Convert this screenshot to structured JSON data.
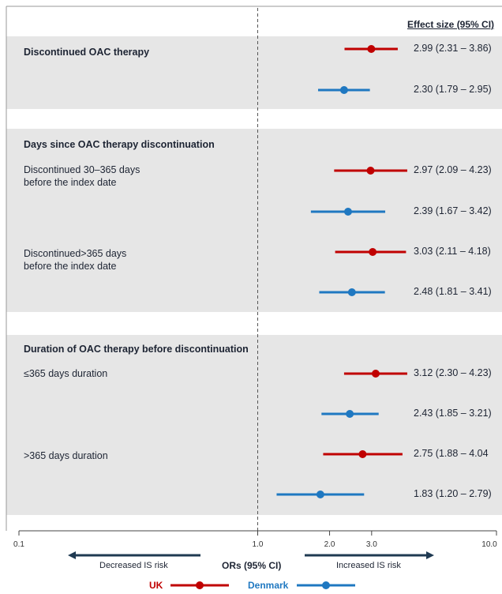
{
  "header": {
    "effect_title": "Effect size (95% CI)"
  },
  "sections": [
    {
      "title": "Discontinued OAC therapy",
      "rows": []
    },
    {
      "title": "Days since OAC therapy discontinuation",
      "rows": [
        "Discontinued 30–365 days\nbefore the index date",
        "Discontinued>365 days\nbefore the index date"
      ]
    },
    {
      "title": "Duration of OAC therapy before discontinuation",
      "rows": [
        "≤365 days duration",
        ">365 days duration"
      ]
    }
  ],
  "chart_data": {
    "type": "forest",
    "x_scale": "log",
    "xlim": [
      0.1,
      10.0
    ],
    "reference_line": 1.0,
    "xlabel": "ORs (95% CI)",
    "ticks": [
      {
        "value": 0.1,
        "label": "0.1"
      },
      {
        "value": 1.0,
        "label": "1.0"
      },
      {
        "value": 2.0,
        "label": "2.0"
      },
      {
        "value": 3.0,
        "label": "3.0"
      },
      {
        "value": 10.0,
        "label": "10.0"
      }
    ],
    "series": [
      {
        "name": "UK",
        "color": "#c00000"
      },
      {
        "name": "Denmark",
        "color": "#1f78c1"
      }
    ],
    "estimates": [
      {
        "series": "UK",
        "or": 2.99,
        "lo": 2.31,
        "hi": 3.86,
        "text": "2.99 (2.31 – 3.86)"
      },
      {
        "series": "Denmark",
        "or": 2.3,
        "lo": 1.79,
        "hi": 2.95,
        "text": "2.30 (1.79 – 2.95)"
      },
      {
        "series": "UK",
        "or": 2.97,
        "lo": 2.09,
        "hi": 4.23,
        "text": "2.97 (2.09 – 4.23)"
      },
      {
        "series": "Denmark",
        "or": 2.39,
        "lo": 1.67,
        "hi": 3.42,
        "text": "2.39 (1.67 – 3.42)"
      },
      {
        "series": "UK",
        "or": 3.03,
        "lo": 2.11,
        "hi": 4.18,
        "text": "3.03 (2.11 – 4.18)"
      },
      {
        "series": "Denmark",
        "or": 2.48,
        "lo": 1.81,
        "hi": 3.41,
        "text": "2.48 (1.81 – 3.41)"
      },
      {
        "series": "UK",
        "or": 3.12,
        "lo": 2.3,
        "hi": 4.23,
        "text": "3.12 (2.30 – 4.23)"
      },
      {
        "series": "Denmark",
        "or": 2.43,
        "lo": 1.85,
        "hi": 3.21,
        "text": "2.43 (1.85 – 3.21)"
      },
      {
        "series": "UK",
        "or": 2.75,
        "lo": 1.88,
        "hi": 4.04,
        "text": "2.75 (1.88 – 4.04"
      },
      {
        "series": "Denmark",
        "or": 1.83,
        "lo": 1.2,
        "hi": 2.79,
        "text": "1.83 (1.20 – 2.79)"
      }
    ],
    "direction_labels": {
      "left": "Decreased IS risk",
      "right": "Increased IS risk"
    },
    "legend": {
      "placement": "bottom",
      "items": [
        "UK",
        "Denmark"
      ]
    }
  }
}
